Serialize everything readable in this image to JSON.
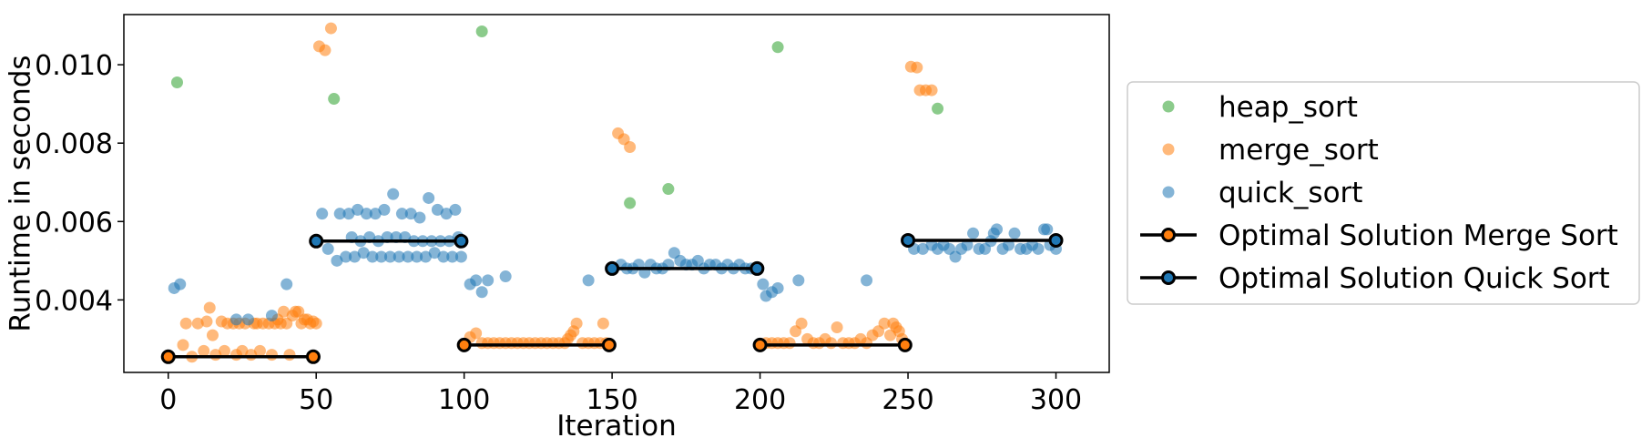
{
  "chart_data": {
    "type": "scatter",
    "xlabel": "Iteration",
    "ylabel": "Runtime in seconds",
    "xlim": [
      -15,
      318
    ],
    "ylim": [
      0.00215,
      0.01128
    ],
    "xticks": [
      0,
      50,
      100,
      150,
      200,
      250,
      300
    ],
    "yticks": [
      0.004,
      0.006,
      0.008,
      0.01
    ],
    "ytick_labels": [
      "0.004",
      "0.006",
      "0.008",
      "0.010"
    ],
    "grid": false,
    "legend_position": "right",
    "series": [
      {
        "name": "heap_sort",
        "kind": "scatter",
        "color": "#2ca02c",
        "points": [
          [
            3,
            0.00955
          ],
          [
            56,
            0.00913
          ],
          [
            106,
            0.01085
          ],
          [
            156,
            0.00647
          ],
          [
            169,
            0.00683
          ],
          [
            206,
            0.01045
          ],
          [
            260,
            0.00888
          ]
        ]
      },
      {
        "name": "merge_sort",
        "kind": "scatter",
        "color": "#ff7f0e",
        "points": [
          [
            5,
            0.00285
          ],
          [
            6,
            0.0034
          ],
          [
            8,
            0.00255
          ],
          [
            10,
            0.0034
          ],
          [
            12,
            0.0027
          ],
          [
            13,
            0.00345
          ],
          [
            14,
            0.0038
          ],
          [
            15,
            0.0031
          ],
          [
            16,
            0.0026
          ],
          [
            18,
            0.00345
          ],
          [
            19,
            0.0027
          ],
          [
            20,
            0.0034
          ],
          [
            22,
            0.0034
          ],
          [
            23,
            0.0026
          ],
          [
            24,
            0.0034
          ],
          [
            25,
            0.0027
          ],
          [
            26,
            0.0034
          ],
          [
            28,
            0.0026
          ],
          [
            29,
            0.0034
          ],
          [
            30,
            0.0034
          ],
          [
            31,
            0.0027
          ],
          [
            32,
            0.0034
          ],
          [
            34,
            0.0034
          ],
          [
            35,
            0.0026
          ],
          [
            36,
            0.0034
          ],
          [
            37,
            0.0035
          ],
          [
            38,
            0.0034
          ],
          [
            39,
            0.0037
          ],
          [
            40,
            0.0034
          ],
          [
            41,
            0.0026
          ],
          [
            42,
            0.0036
          ],
          [
            43,
            0.0037
          ],
          [
            44,
            0.0037
          ],
          [
            45,
            0.0034
          ],
          [
            46,
            0.0035
          ],
          [
            47,
            0.0035
          ],
          [
            48,
            0.0034
          ],
          [
            49,
            0.00345
          ],
          [
            50,
            0.0034
          ],
          [
            51,
            0.01047
          ],
          [
            53,
            0.01037
          ],
          [
            55,
            0.01093
          ],
          [
            102,
            0.00305
          ],
          [
            104,
            0.00315
          ],
          [
            106,
            0.0029
          ],
          [
            108,
            0.0029
          ],
          [
            110,
            0.0029
          ],
          [
            112,
            0.0029
          ],
          [
            114,
            0.0029
          ],
          [
            116,
            0.0029
          ],
          [
            118,
            0.0029
          ],
          [
            120,
            0.0029
          ],
          [
            122,
            0.0029
          ],
          [
            124,
            0.0029
          ],
          [
            126,
            0.0029
          ],
          [
            128,
            0.0029
          ],
          [
            130,
            0.0029
          ],
          [
            132,
            0.0029
          ],
          [
            134,
            0.0029
          ],
          [
            135,
            0.003
          ],
          [
            136,
            0.0031
          ],
          [
            137,
            0.0032
          ],
          [
            138,
            0.0034
          ],
          [
            140,
            0.0029
          ],
          [
            142,
            0.0029
          ],
          [
            144,
            0.0029
          ],
          [
            146,
            0.0029
          ],
          [
            147,
            0.0034
          ],
          [
            148,
            0.0029
          ],
          [
            152,
            0.00825
          ],
          [
            154,
            0.0081
          ],
          [
            156,
            0.0079
          ],
          [
            202,
            0.0029
          ],
          [
            204,
            0.0029
          ],
          [
            206,
            0.0029
          ],
          [
            208,
            0.0029
          ],
          [
            210,
            0.0029
          ],
          [
            212,
            0.0032
          ],
          [
            214,
            0.0034
          ],
          [
            216,
            0.003
          ],
          [
            218,
            0.0029
          ],
          [
            220,
            0.0029
          ],
          [
            222,
            0.003
          ],
          [
            224,
            0.0029
          ],
          [
            226,
            0.0033
          ],
          [
            228,
            0.0029
          ],
          [
            230,
            0.0029
          ],
          [
            232,
            0.0029
          ],
          [
            234,
            0.003
          ],
          [
            236,
            0.0029
          ],
          [
            238,
            0.0031
          ],
          [
            240,
            0.0032
          ],
          [
            242,
            0.0034
          ],
          [
            244,
            0.0031
          ],
          [
            245,
            0.0034
          ],
          [
            246,
            0.0033
          ],
          [
            247,
            0.0032
          ],
          [
            248,
            0.003
          ],
          [
            251,
            0.00995
          ],
          [
            253,
            0.00993
          ],
          [
            254,
            0.00935
          ],
          [
            256,
            0.00935
          ],
          [
            258,
            0.00935
          ]
        ]
      },
      {
        "name": "quick_sort",
        "kind": "scatter",
        "color": "#1f77b4",
        "points": [
          [
            2,
            0.0043
          ],
          [
            4,
            0.0044
          ],
          [
            23,
            0.0035
          ],
          [
            27,
            0.0035
          ],
          [
            35,
            0.0036
          ],
          [
            40,
            0.0044
          ],
          [
            52,
            0.0062
          ],
          [
            54,
            0.0053
          ],
          [
            57,
            0.005
          ],
          [
            58,
            0.0062
          ],
          [
            60,
            0.0051
          ],
          [
            61,
            0.0062
          ],
          [
            62,
            0.0056
          ],
          [
            63,
            0.0051
          ],
          [
            64,
            0.0063
          ],
          [
            65,
            0.0055
          ],
          [
            66,
            0.0052
          ],
          [
            67,
            0.0062
          ],
          [
            68,
            0.0056
          ],
          [
            69,
            0.0051
          ],
          [
            70,
            0.0062
          ],
          [
            71,
            0.0055
          ],
          [
            72,
            0.0051
          ],
          [
            73,
            0.0063
          ],
          [
            74,
            0.0056
          ],
          [
            75,
            0.0051
          ],
          [
            76,
            0.0067
          ],
          [
            77,
            0.0056
          ],
          [
            78,
            0.0051
          ],
          [
            79,
            0.0062
          ],
          [
            80,
            0.0056
          ],
          [
            81,
            0.0051
          ],
          [
            82,
            0.0062
          ],
          [
            83,
            0.0055
          ],
          [
            84,
            0.0051
          ],
          [
            85,
            0.0061
          ],
          [
            86,
            0.0055
          ],
          [
            87,
            0.0051
          ],
          [
            88,
            0.0066
          ],
          [
            89,
            0.0055
          ],
          [
            90,
            0.0052
          ],
          [
            91,
            0.0063
          ],
          [
            92,
            0.0055
          ],
          [
            93,
            0.0051
          ],
          [
            94,
            0.0062
          ],
          [
            95,
            0.0055
          ],
          [
            96,
            0.0051
          ],
          [
            97,
            0.0063
          ],
          [
            98,
            0.0056
          ],
          [
            99,
            0.0051
          ],
          [
            102,
            0.0044
          ],
          [
            104,
            0.0045
          ],
          [
            106,
            0.0042
          ],
          [
            108,
            0.0045
          ],
          [
            114,
            0.0046
          ],
          [
            142,
            0.0045
          ],
          [
            153,
            0.0049
          ],
          [
            155,
            0.0048
          ],
          [
            157,
            0.0048
          ],
          [
            159,
            0.0049
          ],
          [
            161,
            0.0047
          ],
          [
            163,
            0.0049
          ],
          [
            165,
            0.0048
          ],
          [
            167,
            0.0048
          ],
          [
            169,
            0.0049
          ],
          [
            171,
            0.0052
          ],
          [
            173,
            0.005
          ],
          [
            175,
            0.0049
          ],
          [
            177,
            0.0049
          ],
          [
            179,
            0.005
          ],
          [
            181,
            0.0048
          ],
          [
            183,
            0.0049
          ],
          [
            185,
            0.0049
          ],
          [
            187,
            0.0048
          ],
          [
            189,
            0.0049
          ],
          [
            191,
            0.0048
          ],
          [
            193,
            0.0049
          ],
          [
            195,
            0.0048
          ],
          [
            197,
            0.0048
          ],
          [
            199,
            0.0048
          ],
          [
            201,
            0.0044
          ],
          [
            202,
            0.0041
          ],
          [
            204,
            0.0042
          ],
          [
            206,
            0.0043
          ],
          [
            213,
            0.0045
          ],
          [
            236,
            0.0045
          ],
          [
            252,
            0.0053
          ],
          [
            255,
            0.0053
          ],
          [
            258,
            0.0054
          ],
          [
            260,
            0.0053
          ],
          [
            262,
            0.0054
          ],
          [
            264,
            0.0053
          ],
          [
            266,
            0.0051
          ],
          [
            268,
            0.0053
          ],
          [
            270,
            0.0054
          ],
          [
            272,
            0.0057
          ],
          [
            274,
            0.0053
          ],
          [
            276,
            0.0053
          ],
          [
            278,
            0.0055
          ],
          [
            279,
            0.0057
          ],
          [
            280,
            0.0058
          ],
          [
            282,
            0.0053
          ],
          [
            284,
            0.0054
          ],
          [
            286,
            0.0057
          ],
          [
            288,
            0.0053
          ],
          [
            290,
            0.0053
          ],
          [
            292,
            0.0054
          ],
          [
            294,
            0.0053
          ],
          [
            296,
            0.0058
          ],
          [
            297,
            0.0058
          ],
          [
            298,
            0.0054
          ],
          [
            300,
            0.0053
          ]
        ]
      },
      {
        "name": "Optimal Solution Merge Sort",
        "kind": "line",
        "color": "#000000",
        "marker_face": "#ff7f0e",
        "segments": [
          [
            [
              0,
              0.00255
            ],
            [
              49,
              0.00255
            ]
          ],
          [
            [
              100,
              0.00285
            ],
            [
              149,
              0.00285
            ]
          ],
          [
            [
              200,
              0.00285
            ],
            [
              249,
              0.00285
            ]
          ]
        ]
      },
      {
        "name": "Optimal Solution Quick Sort",
        "kind": "line",
        "color": "#000000",
        "marker_face": "#1f77b4",
        "segments": [
          [
            [
              50,
              0.0055
            ],
            [
              99,
              0.0055
            ]
          ],
          [
            [
              150,
              0.0048
            ],
            [
              199,
              0.0048
            ]
          ],
          [
            [
              250,
              0.00552
            ],
            [
              300,
              0.00552
            ]
          ]
        ]
      }
    ]
  }
}
